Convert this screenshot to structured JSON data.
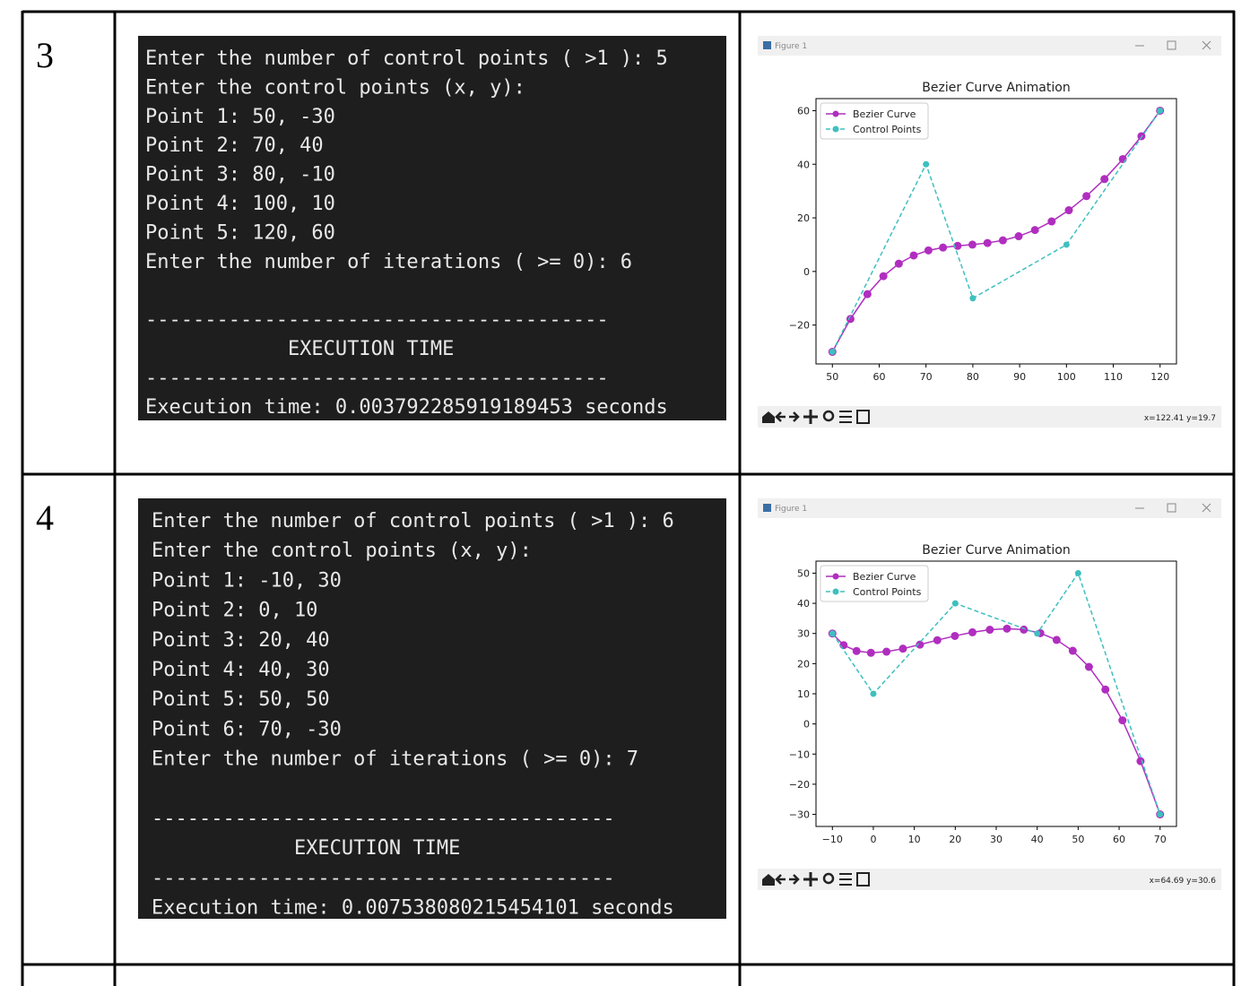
{
  "rows": [
    {
      "number": "3",
      "terminal": [
        "Enter the number of control points ( >1 ): 5",
        "Enter the control points (x, y):",
        "Point 1: 50, -30",
        "Point 2: 70, 40",
        "Point 3: 80, -10",
        "Point 4: 100, 10",
        "Point 5: 120, 60",
        "Enter the number of iterations ( >= 0): 6",
        "",
        "---------------------------------------",
        "            EXECUTION TIME",
        "---------------------------------------",
        "Execution time: 0.003792285919189453 seconds"
      ]
    },
    {
      "number": "4",
      "terminal": [
        "Enter the number of control points ( >1 ): 6",
        "Enter the control points (x, y):",
        "Point 1: -10, 30",
        "Point 2: 0, 10",
        "Point 3: 20, 40",
        "Point 4: 40, 30",
        "Point 5: 50, 50",
        "Point 6: 70, -30",
        "Enter the number of iterations ( >= 0): 7",
        "",
        "---------------------------------------",
        "            EXECUTION TIME",
        "---------------------------------------",
        "Execution time: 0.007538080215454101 seconds"
      ]
    }
  ],
  "figures": [
    {
      "window_title": "Figure 1",
      "status": "x=122.41 y=19.7"
    },
    {
      "window_title": "Figure 1",
      "status": "x=64.69 y=30.6"
    }
  ],
  "chart_data": [
    {
      "type": "line",
      "title": "Bezier Curve Animation",
      "legend": "upper left",
      "xlim": [
        46.5,
        123.5
      ],
      "ylim": [
        -34.5,
        64.5
      ],
      "xticks": [
        50,
        60,
        70,
        80,
        90,
        100,
        110,
        120
      ],
      "yticks": [
        {
          "value": -20,
          "label": "−20"
        },
        0,
        20,
        40,
        60
      ],
      "series": [
        {
          "name": "Bezier Curve",
          "color": "#b02ebf",
          "linestyle": "solid",
          "x": [
            50,
            53.86,
            57.48,
            60.9,
            64.19,
            67.38,
            70.52,
            73.63,
            76.75,
            79.91,
            83.13,
            86.42,
            89.79,
            93.27,
            96.84,
            100.51,
            104.27,
            108.12,
            112.04,
            116.01,
            120
          ],
          "values": [
            -30,
            -17.71,
            -8.46,
            -1.75,
            2.91,
            5.98,
            7.86,
            8.93,
            9.55,
            10.02,
            10.63,
            11.6,
            13.15,
            15.46,
            18.66,
            22.85,
            28.11,
            34.47,
            41.94,
            50.47,
            60
          ]
        },
        {
          "name": "Control Points",
          "color": "#3fbfbf",
          "linestyle": "dashed",
          "x": [
            50,
            70,
            80,
            100,
            120
          ],
          "values": [
            -30,
            40,
            -10,
            10,
            60
          ]
        }
      ]
    },
    {
      "type": "line",
      "title": "Bezier Curve Animation",
      "legend": "upper left",
      "xlim": [
        -14,
        74
      ],
      "ylim": [
        -34,
        54
      ],
      "xticks": [
        {
          "value": -10,
          "label": "−10"
        },
        0,
        10,
        20,
        30,
        40,
        50,
        60,
        70
      ],
      "yticks": [
        {
          "value": -30,
          "label": "−30"
        },
        {
          "value": -20,
          "label": "−20"
        },
        {
          "value": -10,
          "label": "−10"
        },
        0,
        10,
        20,
        30,
        40,
        50
      ],
      "series": [
        {
          "name": "Bezier Curve",
          "color": "#b02ebf",
          "linestyle": "solid",
          "x": [
            -10,
            -7.26,
            -4.1,
            -0.59,
            3.21,
            7.22,
            11.37,
            15.62,
            19.91,
            24.19,
            28.44,
            32.62,
            36.73,
            40.77,
            44.74,
            48.68,
            52.63,
            56.65,
            60.81,
            65.23,
            70
          ],
          "values": [
            30,
            26.14,
            24.18,
            23.59,
            23.96,
            24.96,
            26.31,
            27.78,
            29.19,
            30.4,
            31.25,
            31.6,
            31.29,
            30.12,
            27.87,
            24.26,
            18.92,
            11.41,
            1.2,
            -12.34,
            -30
          ]
        },
        {
          "name": "Control Points",
          "color": "#3fbfbf",
          "linestyle": "dashed",
          "x": [
            -10,
            0,
            20,
            40,
            50,
            70
          ],
          "values": [
            30,
            10,
            40,
            30,
            50,
            -30
          ]
        }
      ]
    }
  ]
}
